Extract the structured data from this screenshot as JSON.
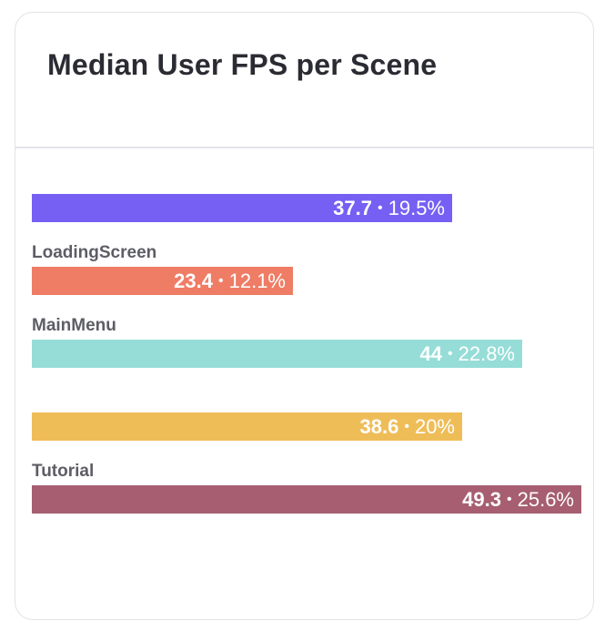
{
  "card": {
    "title": "Median User FPS per Scene"
  },
  "chart_data": {
    "type": "bar",
    "orientation": "horizontal",
    "categories": [
      "",
      "LoadingScreen",
      "MainMenu",
      "",
      "Tutorial"
    ],
    "values": [
      37.7,
      23.4,
      44,
      38.6,
      49.3
    ],
    "percent_labels": [
      "19.5%",
      "12.1%",
      "22.8%",
      "20%",
      "25.6%"
    ],
    "value_labels": [
      "37.7",
      "23.4",
      "44",
      "38.6",
      "49.3"
    ],
    "colors": [
      "#7560f3",
      "#ef7c65",
      "#96ddd7",
      "#efbd58",
      "#a65e70"
    ],
    "xlim": [
      0,
      49.3
    ],
    "grid": false,
    "legend": "none",
    "title": "Median User FPS per Scene"
  }
}
